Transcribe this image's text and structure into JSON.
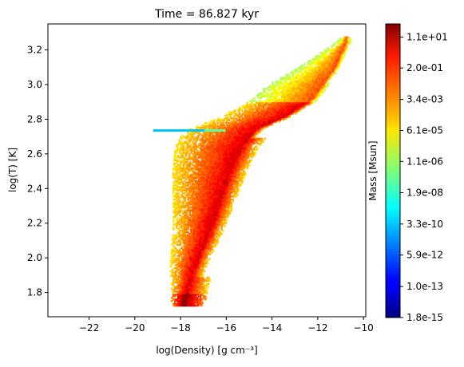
{
  "chart_data": {
    "type": "heatmap",
    "title": "Time = 86.827 kyr",
    "xlabel": "log(Density) [g cm⁻³]",
    "ylabel": "log(T) [K]",
    "xlim": [
      -23.8,
      -9.9
    ],
    "ylim": [
      1.66,
      3.35
    ],
    "xticks": [
      -22,
      -20,
      -18,
      -16,
      -14,
      -12,
      -10
    ],
    "xtick_labels": [
      "−22",
      "−20",
      "−18",
      "−16",
      "−14",
      "−12",
      "−10"
    ],
    "yticks": [
      1.8,
      2.0,
      2.2,
      2.4,
      2.6,
      2.8,
      3.0,
      3.2
    ],
    "ytick_labels": [
      "1.8",
      "2.0",
      "2.2",
      "2.4",
      "2.6",
      "2.8",
      "3.0",
      "3.2"
    ],
    "grid": false,
    "colormap": "jet",
    "colorbar": {
      "label": "Mass [Msun]",
      "scale": "log",
      "range": [
        1.8e-15,
        60.0
      ],
      "tick_labels": [
        "1.8e-15",
        "1.0e-13",
        "5.9e-12",
        "3.3e-10",
        "1.9e-08",
        "1.1e-06",
        "6.1e-05",
        "3.4e-03",
        "2.0e-01",
        "1.1e+01"
      ]
    },
    "features": [
      {
        "kind": "main-band",
        "ridge": [
          [
            -17.9,
            1.74
          ],
          [
            -17.7,
            1.85
          ],
          [
            -17.3,
            2.0
          ],
          [
            -16.8,
            2.15
          ],
          [
            -16.4,
            2.3
          ],
          [
            -15.9,
            2.5
          ],
          [
            -15.4,
            2.65
          ],
          [
            -14.7,
            2.75
          ],
          [
            -13.5,
            2.82
          ],
          [
            -12.3,
            2.92
          ],
          [
            -11.3,
            3.1
          ],
          [
            -10.8,
            3.25
          ]
        ]
      },
      {
        "kind": "cool-streak",
        "x_range": [
          -19.2,
          -16.1
        ],
        "y": 2.735,
        "mass_log10": -9.5
      }
    ]
  }
}
